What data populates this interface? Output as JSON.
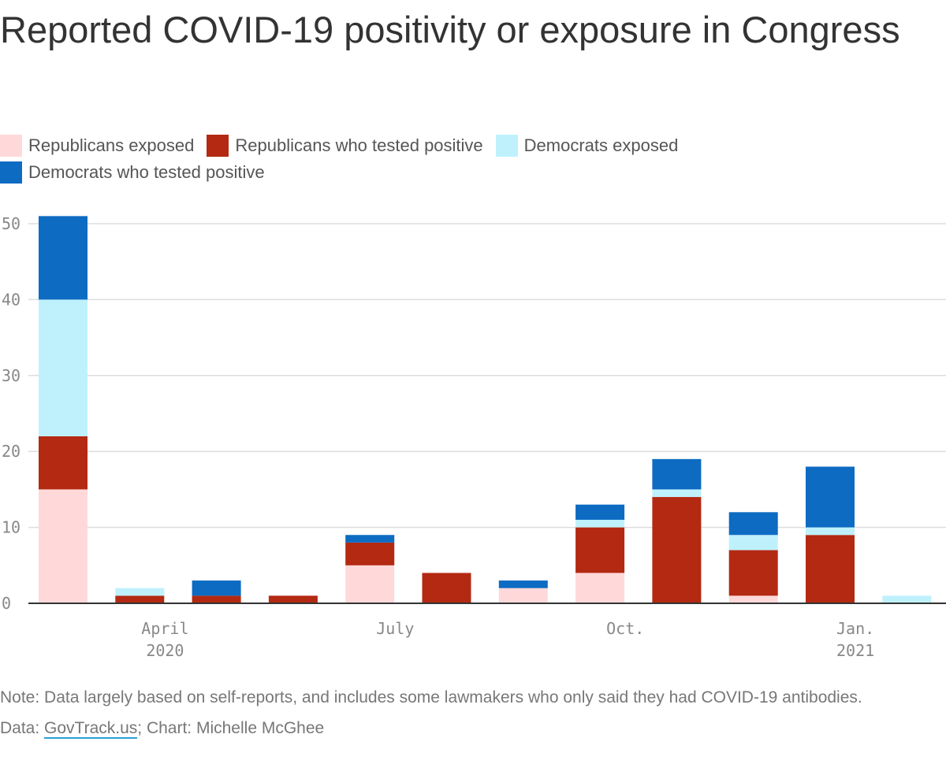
{
  "chart_data": {
    "type": "bar",
    "stacked": true,
    "title": "Reported COVID-19 positivity or exposure in Congress",
    "ylim": [
      0,
      50
    ],
    "yticks": [
      0,
      10,
      20,
      30,
      40,
      50
    ],
    "grid": true,
    "legend_position": "top-left",
    "x_tick_labels": [
      {
        "label": "April",
        "sublabel": "2020",
        "index": 1.33
      },
      {
        "label": "July",
        "sublabel": "",
        "index": 4.33
      },
      {
        "label": "Oct.",
        "sublabel": "",
        "index": 7.33
      },
      {
        "label": "Jan.",
        "sublabel": "2021",
        "index": 10.33
      }
    ],
    "categories": [
      "2020-03",
      "2020-04",
      "2020-05",
      "2020-06",
      "2020-07",
      "2020-08",
      "2020-09",
      "2020-10",
      "2020-11",
      "2020-12",
      "2021-01",
      "2021-02"
    ],
    "series": [
      {
        "name": "Republicans exposed",
        "color": "#ffd9da",
        "values": [
          15,
          0,
          0,
          0,
          5,
          0,
          2,
          4,
          0,
          1,
          0,
          0
        ]
      },
      {
        "name": "Republicans who tested positive",
        "color": "#b32912",
        "values": [
          7,
          1,
          1,
          1,
          3,
          4,
          0,
          6,
          14,
          6,
          9,
          0
        ]
      },
      {
        "name": "Democrats exposed",
        "color": "#bff1fd",
        "values": [
          18,
          1,
          0,
          0,
          0,
          0,
          0,
          1,
          1,
          2,
          1,
          1
        ]
      },
      {
        "name": "Democrats who tested positive",
        "color": "#0d6bc2",
        "values": [
          11,
          0,
          2,
          0,
          1,
          0,
          1,
          2,
          4,
          3,
          8,
          0
        ]
      }
    ]
  },
  "footer": {
    "note": "Note: Data largely based on self-reports, and includes some lawmakers who only said they had COVID-19 antibodies.",
    "data_prefix": "Data: ",
    "data_source": "GovTrack.us",
    "credit": "; Chart: Michelle McGhee"
  }
}
